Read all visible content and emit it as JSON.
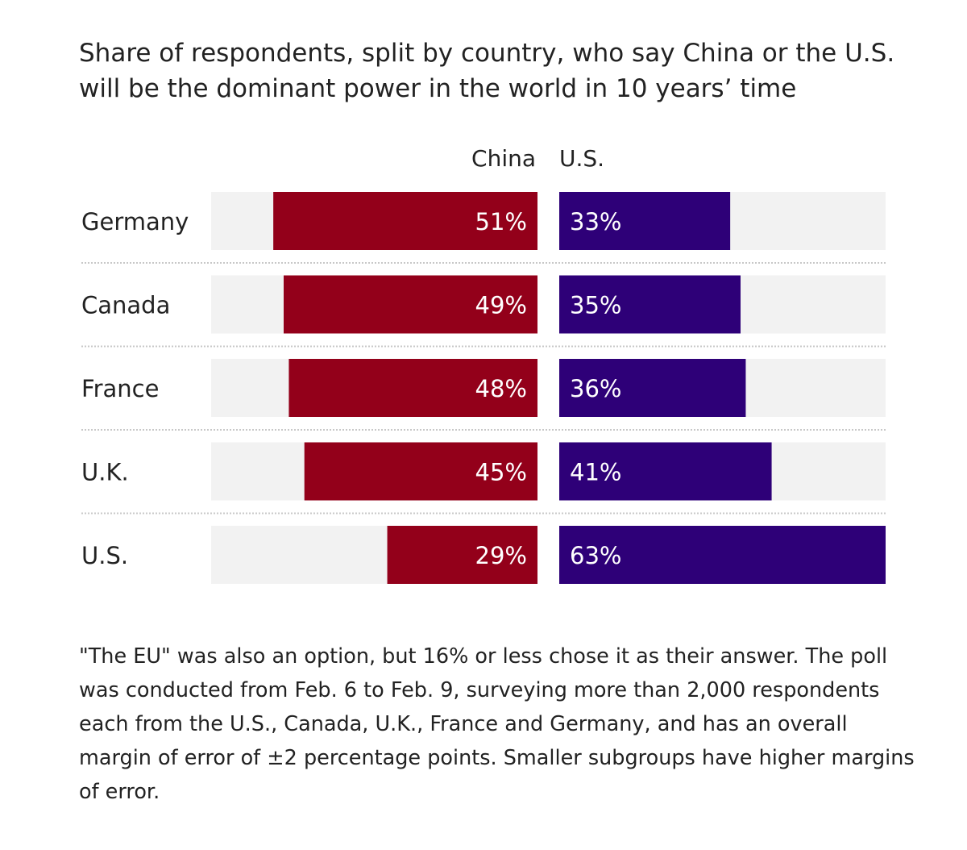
{
  "chart_data": {
    "type": "bar",
    "title": "Share of respondents, split by country, who say China or the U.S. will be the dominant power in the world in 10 years’ time",
    "categories": [
      "Germany",
      "Canada",
      "France",
      "U.K.",
      "U.S."
    ],
    "series": [
      {
        "name": "China",
        "values": [
          51,
          49,
          48,
          45,
          29
        ],
        "labels": [
          "51%",
          "49%",
          "48%",
          "45%",
          "29%"
        ],
        "color": "#93001a"
      },
      {
        "name": "U.S.",
        "values": [
          33,
          35,
          36,
          41,
          63
        ],
        "labels": [
          "33%",
          "35%",
          "36%",
          "41%",
          "63%"
        ],
        "color": "#2e0078"
      }
    ],
    "xlim": [
      0,
      63
    ],
    "unit": "%",
    "track_color": "#f2f2f2",
    "divider_color": "#c8c8c8"
  },
  "note": "\"The EU\" was also an option, but 16% or less chose it as their answer. The poll was conducted from Feb. 6 to Feb. 9, surveying more than 2,000 respondents each from the U.S., Canada, U.K., France and Germany, and has an overall margin of error of ±2 percentage points. Smaller subgroups have higher margins of error."
}
